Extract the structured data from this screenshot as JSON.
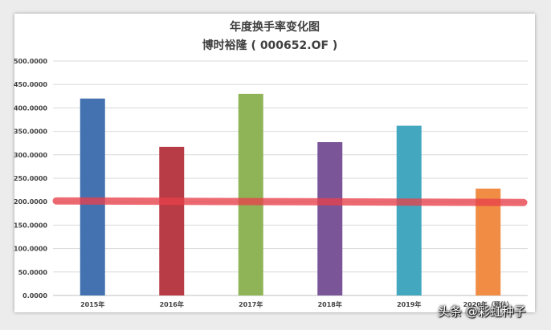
{
  "chart_data": {
    "type": "bar",
    "title": "年度换手率变化图",
    "subtitle": "博时裕隆 ( 000652.OF )",
    "categories": [
      "2015年",
      "2016年",
      "2017年",
      "2018年",
      "2019年",
      "2020年（预估）"
    ],
    "values": [
      420,
      317,
      430,
      327,
      362,
      228
    ],
    "colors": [
      "#4472b0",
      "#b83c46",
      "#8fb457",
      "#7a5698",
      "#44a7c0",
      "#f08c44"
    ],
    "ylim": [
      0,
      500
    ],
    "yticks": [
      "0.0000",
      "50.0000",
      "100.0000",
      "150.0000",
      "200.0000",
      "250.0000",
      "300.0000",
      "350.0000",
      "400.0000",
      "450.0000",
      "500.0000"
    ],
    "grid": true,
    "reference_line": {
      "value": 200,
      "color": "#e8414b"
    },
    "xlabel": "",
    "ylabel": ""
  },
  "watermark": "头条 @彩虹种子"
}
